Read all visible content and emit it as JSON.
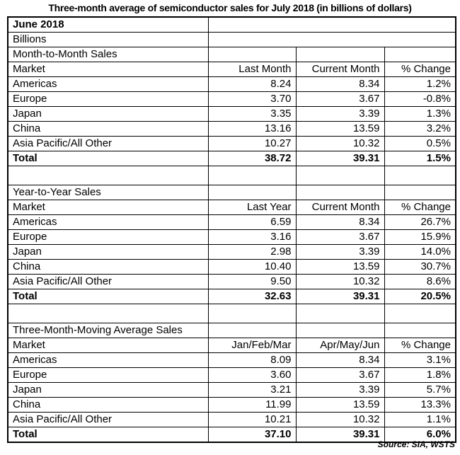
{
  "title": "Three-month average of semiconductor sales for July 2018 (in billions of dollars)",
  "source_note": "Source: SIA, WSTS",
  "colors": {
    "text": "#000000",
    "border": "#000000",
    "background": "#ffffff"
  },
  "chart_data": {
    "type": "table",
    "title": "Three-month average of semiconductor sales for July 2018 (in billions of dollars)",
    "period_label": "June 2018",
    "units_label": "Billions",
    "sections": [
      {
        "title": "Month-to-Month Sales",
        "columns": [
          "Market",
          "Last Month",
          "Current Month",
          "% Change"
        ],
        "rows": [
          [
            "Americas",
            "8.24",
            "8.34",
            "1.2%"
          ],
          [
            "Europe",
            "3.70",
            "3.67",
            "-0.8%"
          ],
          [
            "Japan",
            "3.35",
            "3.39",
            "1.3%"
          ],
          [
            "China",
            "13.16",
            "13.59",
            "3.2%"
          ],
          [
            "Asia Pacific/All Other",
            "10.27",
            "10.32",
            "0.5%"
          ]
        ],
        "total_row": [
          "Total",
          "38.72",
          "39.31",
          "1.5%"
        ]
      },
      {
        "title": "Year-to-Year Sales",
        "columns": [
          "Market",
          "Last Year",
          "Current Month",
          "% Change"
        ],
        "rows": [
          [
            "Americas",
            "6.59",
            "8.34",
            "26.7%"
          ],
          [
            "Europe",
            "3.16",
            "3.67",
            "15.9%"
          ],
          [
            "Japan",
            "2.98",
            "3.39",
            "14.0%"
          ],
          [
            "China",
            "10.40",
            "13.59",
            "30.7%"
          ],
          [
            "Asia Pacific/All Other",
            "9.50",
            "10.32",
            "8.6%"
          ]
        ],
        "total_row": [
          "Total",
          "32.63",
          "39.31",
          "20.5%"
        ]
      },
      {
        "title": "Three-Month-Moving Average Sales",
        "columns": [
          "Market",
          "Jan/Feb/Mar",
          "Apr/May/Jun",
          "% Change"
        ],
        "rows": [
          [
            "Americas",
            "8.09",
            "8.34",
            "3.1%"
          ],
          [
            "Europe",
            "3.60",
            "3.67",
            "1.8%"
          ],
          [
            "Japan",
            "3.21",
            "3.39",
            "5.7%"
          ],
          [
            "China",
            "11.99",
            "13.59",
            "13.3%"
          ],
          [
            "Asia Pacific/All Other",
            "10.21",
            "10.32",
            "1.1%"
          ]
        ],
        "total_row": [
          "Total",
          "37.10",
          "39.31",
          "6.0%"
        ]
      }
    ]
  }
}
